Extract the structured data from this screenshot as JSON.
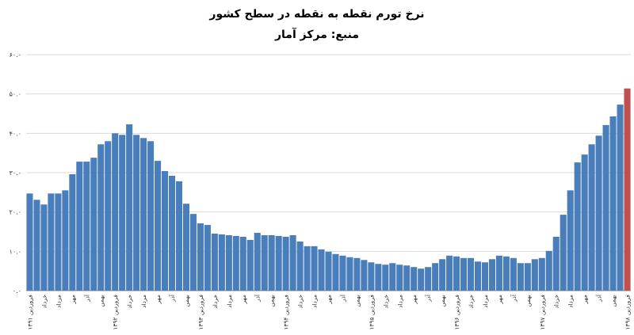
{
  "chart_data": {
    "type": "bar",
    "title": "نرخ تورم نقطه به نقطه در سطح کشور",
    "subtitle": "منبع: مرکز آمار",
    "categories": [
      "فروردین ۱۳۹۱",
      null,
      "خرداد",
      null,
      "مرداد",
      null,
      "مهر",
      null,
      "آذر",
      null,
      "بهمن",
      null,
      "فروردین ۱۳۹۲",
      null,
      "خرداد",
      null,
      "مرداد",
      null,
      "مهر",
      null,
      "آذر",
      null,
      "بهمن",
      null,
      "فروردین ۱۳۹۳",
      null,
      "خرداد",
      null,
      "مرداد",
      null,
      "مهر",
      null,
      "آذر",
      null,
      "بهمن",
      null,
      "فروردین ۱۳۹۴",
      null,
      "خرداد",
      null,
      "مرداد",
      null,
      "مهر",
      null,
      "آذر",
      null,
      "بهمن",
      null,
      "فروردین ۱۳۹۵",
      null,
      "خرداد",
      null,
      "مرداد",
      null,
      "مهر",
      null,
      "آذر",
      null,
      "بهمن",
      null,
      "فروردین ۱۳۹۶",
      null,
      "خرداد",
      null,
      "مرداد",
      null,
      "مهر",
      null,
      "آذر",
      null,
      "بهمن",
      null,
      "فروردین ۱۳۹۷",
      null,
      "خرداد",
      null,
      "مرداد",
      null,
      "مهر",
      null,
      "آذر",
      null,
      "بهمن",
      null,
      "فروردین ۱۳۹۸"
    ],
    "values": [
      24.7,
      23.1,
      21.9,
      24.7,
      24.7,
      25.5,
      29.6,
      32.8,
      32.8,
      33.8,
      37.2,
      38.0,
      40.0,
      39.6,
      42.3,
      39.6,
      38.8,
      38.0,
      33.0,
      30.4,
      29.2,
      27.8,
      22.1,
      19.5,
      17.1,
      16.7,
      14.5,
      14.3,
      14.1,
      13.9,
      13.7,
      12.9,
      14.7,
      14.1,
      14.1,
      13.9,
      13.7,
      14.1,
      12.5,
      11.3,
      11.3,
      10.5,
      9.9,
      9.3,
      8.9,
      8.5,
      8.3,
      7.8,
      7.2,
      6.8,
      6.6,
      7.0,
      6.6,
      6.4,
      6.0,
      5.6,
      6.0,
      7.0,
      8.0,
      8.9,
      8.7,
      8.3,
      8.3,
      7.4,
      7.2,
      8.0,
      8.9,
      8.7,
      8.3,
      7.0,
      7.0,
      8.0,
      8.3,
      10.1,
      13.7,
      19.3,
      25.5,
      32.6,
      34.6,
      37.2,
      39.4,
      42.1,
      44.3,
      47.3,
      51.4
    ],
    "color": "#4a7ebb",
    "last_color": "#c0504d",
    "ylim": [
      0,
      60
    ],
    "yticks": [
      {
        "value": 0,
        "label": "۰.۰"
      },
      {
        "value": 10,
        "label": "۱۰.۰"
      },
      {
        "value": 20,
        "label": "۲۰.۰"
      },
      {
        "value": 30,
        "label": "۳۰.۰"
      },
      {
        "value": 40,
        "label": "۴۰.۰"
      },
      {
        "value": 50,
        "label": "۵۰.۰"
      },
      {
        "value": 60,
        "label": "۶۰.۰"
      }
    ],
    "grid": true
  }
}
